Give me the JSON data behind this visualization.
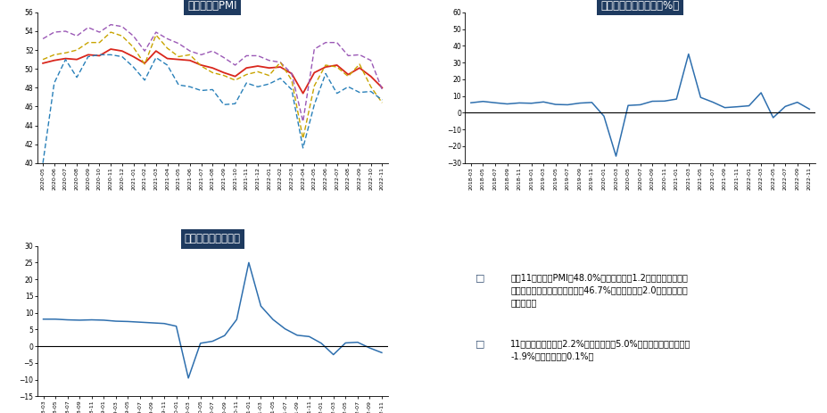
{
  "title_pmi": "中国制造业PMI",
  "title_industry": "工业增加值当月同比（%）",
  "title_service": "中国服务业生产指数",
  "header_bg": "#1e3a5f",
  "header_text": "#ffffff",
  "pmi_labels": [
    "2020-05",
    "2020-06",
    "2020-07",
    "2020-08",
    "2020-09",
    "2020-10",
    "2020-11",
    "2020-12",
    "2021-01",
    "2021-02",
    "2021-03",
    "2021-04",
    "2021-05",
    "2021-06",
    "2021-07",
    "2021-08",
    "2021-09",
    "2021-10",
    "2021-11",
    "2021-12",
    "2022-01",
    "2022-02",
    "2022-03",
    "2022-04",
    "2022-05",
    "2022-06",
    "2022-07",
    "2022-08",
    "2022-09",
    "2022-10",
    "2022-11"
  ],
  "pmi_pmi": [
    50.6,
    50.9,
    51.1,
    51.0,
    51.5,
    51.4,
    52.1,
    51.9,
    51.3,
    50.6,
    51.9,
    51.1,
    51.0,
    50.9,
    50.4,
    50.1,
    49.6,
    49.2,
    50.1,
    50.3,
    50.1,
    50.2,
    49.5,
    47.4,
    49.6,
    50.2,
    50.4,
    49.4,
    50.1,
    49.2,
    48.0
  ],
  "pmi_prod": [
    53.2,
    53.9,
    54.0,
    53.5,
    54.4,
    53.9,
    54.7,
    54.5,
    53.5,
    51.9,
    53.9,
    53.2,
    52.7,
    51.9,
    51.5,
    51.9,
    51.2,
    50.4,
    51.4,
    51.4,
    50.9,
    50.7,
    49.5,
    44.4,
    52.1,
    52.8,
    52.8,
    51.4,
    51.5,
    50.9,
    47.8
  ],
  "pmi_neworder": [
    51.0,
    51.5,
    51.7,
    52.0,
    52.8,
    52.8,
    53.9,
    53.5,
    52.3,
    50.5,
    53.6,
    52.2,
    51.3,
    51.5,
    50.3,
    49.6,
    49.3,
    48.8,
    49.4,
    49.7,
    49.3,
    50.7,
    48.8,
    42.6,
    48.2,
    50.4,
    50.2,
    49.2,
    50.5,
    48.1,
    46.4
  ],
  "pmi_export": [
    40.0,
    48.5,
    51.0,
    49.1,
    51.3,
    51.5,
    51.5,
    51.3,
    50.2,
    48.8,
    51.2,
    50.4,
    48.3,
    48.1,
    47.7,
    47.8,
    46.2,
    46.3,
    48.5,
    48.1,
    48.4,
    49.0,
    47.8,
    41.6,
    46.2,
    49.5,
    47.4,
    48.1,
    47.5,
    47.6,
    46.7
  ],
  "industry_labels": [
    "2018-03",
    "2018-05",
    "2018-07",
    "2018-09",
    "2018-11",
    "2019-01",
    "2019-03",
    "2019-05",
    "2019-07",
    "2019-09",
    "2019-11",
    "2020-01",
    "2020-03",
    "2020-05",
    "2020-07",
    "2020-09",
    "2020-11",
    "2021-01",
    "2021-03",
    "2021-05",
    "2021-07",
    "2021-09",
    "2021-11",
    "2022-01",
    "2022-03",
    "2022-05",
    "2022-07",
    "2022-09",
    "2022-11"
  ],
  "industry_values": [
    6.0,
    6.8,
    6.0,
    5.3,
    5.9,
    5.7,
    6.5,
    5.0,
    4.8,
    5.8,
    6.2,
    -2.0,
    -25.9,
    4.4,
    4.8,
    6.9,
    7.0,
    8.2,
    35.1,
    9.2,
    6.4,
    3.1,
    3.6,
    4.2,
    12.0,
    -2.9,
    3.8,
    6.3,
    2.2
  ],
  "service_labels": [
    "2018-03",
    "2018-05",
    "2018-07",
    "2018-09",
    "2018-11",
    "2019-01",
    "2019-03",
    "2019-05",
    "2019-07",
    "2019-09",
    "2019-11",
    "2020-01",
    "2020-03",
    "2020-05",
    "2020-07",
    "2020-09",
    "2020-11",
    "2021-01",
    "2021-03",
    "2021-05",
    "2021-07",
    "2021-09",
    "2021-11",
    "2022-01",
    "2022-03",
    "2022-05",
    "2022-07",
    "2022-09",
    "2022-11"
  ],
  "service_values": [
    8.1,
    8.1,
    7.9,
    7.8,
    7.9,
    7.8,
    7.5,
    7.4,
    7.2,
    7.0,
    6.8,
    6.0,
    -9.5,
    0.9,
    1.5,
    3.2,
    8.0,
    25.0,
    12.0,
    8.0,
    5.2,
    3.3,
    2.9,
    0.9,
    -2.5,
    1.0,
    1.2,
    -0.5,
    -1.9
  ],
  "pmi_color": "#d9261c",
  "prod_color": "#9b59b6",
  "neworder_color": "#c8a400",
  "export_color": "#2980b9",
  "chart_line_color": "#2e6fae",
  "industry_ylim": [
    -30,
    60
  ],
  "industry_yticks": [
    -30,
    -20,
    -10,
    0,
    10,
    20,
    30,
    40,
    50,
    60
  ],
  "service_ylim": [
    -15,
    30
  ],
  "service_yticks": [
    -15,
    -10,
    -5,
    0,
    5,
    10,
    15,
    20,
    25,
    30
  ],
  "pmi_ylim": [
    40,
    56
  ],
  "pmi_yticks": [
    40,
    42,
    44,
    46,
    48,
    50,
    52,
    54,
    56
  ],
  "bullet1": "中国11月制造业PMI为48.0%，比上月下降1.2个百分点，低于临界点；非制造业商务活动指数为46.7%，比上月下降2.0个百分点，低于临界点。",
  "bullet2": "11月工业增加值同比2.2%，低于前值的5.0%。服务业生产指数同比-1.9%，低于前值的0.1%。"
}
